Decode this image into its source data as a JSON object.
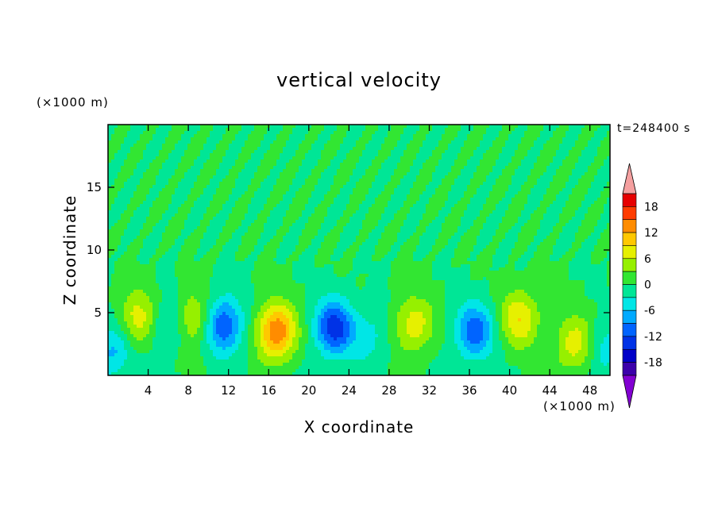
{
  "chart_data": {
    "type": "heatmap",
    "title": "vertical velocity",
    "xlabel": "X coordinate",
    "ylabel": "Z coordinate",
    "x_unit_label": "(×1000 m)",
    "y_unit_label": "(×1000 m)",
    "time_label": "t=248400 s",
    "xlim": [
      0,
      50
    ],
    "ylim": [
      0,
      20
    ],
    "x_ticks": [
      4,
      8,
      12,
      16,
      20,
      24,
      28,
      32,
      36,
      40,
      44,
      48
    ],
    "y_ticks": [
      5,
      10,
      15
    ],
    "colorbar": {
      "levels": [
        -21,
        -18,
        -15,
        -12,
        -9,
        -6,
        -3,
        0,
        3,
        6,
        9,
        12,
        15,
        18,
        21
      ],
      "tick_labels": [
        "18",
        "12",
        "6",
        "0",
        "-6",
        "-12",
        "-18"
      ],
      "tick_values": [
        18,
        12,
        6,
        0,
        -6,
        -12,
        -18
      ],
      "colors": [
        "#8200d2",
        "#3c00aa",
        "#0000c8",
        "#0032e6",
        "#0064ff",
        "#00aaff",
        "#00e6e6",
        "#00e696",
        "#32e632",
        "#96f000",
        "#e6f000",
        "#ffc800",
        "#ff8c00",
        "#ff3c00",
        "#e60000",
        "#f5a0a0"
      ],
      "extend": "both"
    },
    "features": [
      {
        "x": 0.5,
        "z": 2.0,
        "w": -7
      },
      {
        "x": 3.0,
        "z": 4.5,
        "w": 8
      },
      {
        "x": 6.0,
        "z": 4.0,
        "w": -5
      },
      {
        "x": 8.5,
        "z": 4.5,
        "w": 7
      },
      {
        "x": 11.5,
        "z": 4.0,
        "w": -12
      },
      {
        "x": 16.8,
        "z": 3.5,
        "w": 15
      },
      {
        "x": 22.5,
        "z": 3.8,
        "w": -14
      },
      {
        "x": 26.0,
        "z": 3.0,
        "w": -4
      },
      {
        "x": 30.5,
        "z": 4.0,
        "w": 8
      },
      {
        "x": 36.5,
        "z": 3.5,
        "w": -11
      },
      {
        "x": 41.0,
        "z": 4.5,
        "w": 9
      },
      {
        "x": 46.5,
        "z": 2.5,
        "w": 8
      },
      {
        "x": 49.5,
        "z": 2.0,
        "w": -5
      }
    ],
    "grid": false,
    "legend": "colorbar right"
  }
}
